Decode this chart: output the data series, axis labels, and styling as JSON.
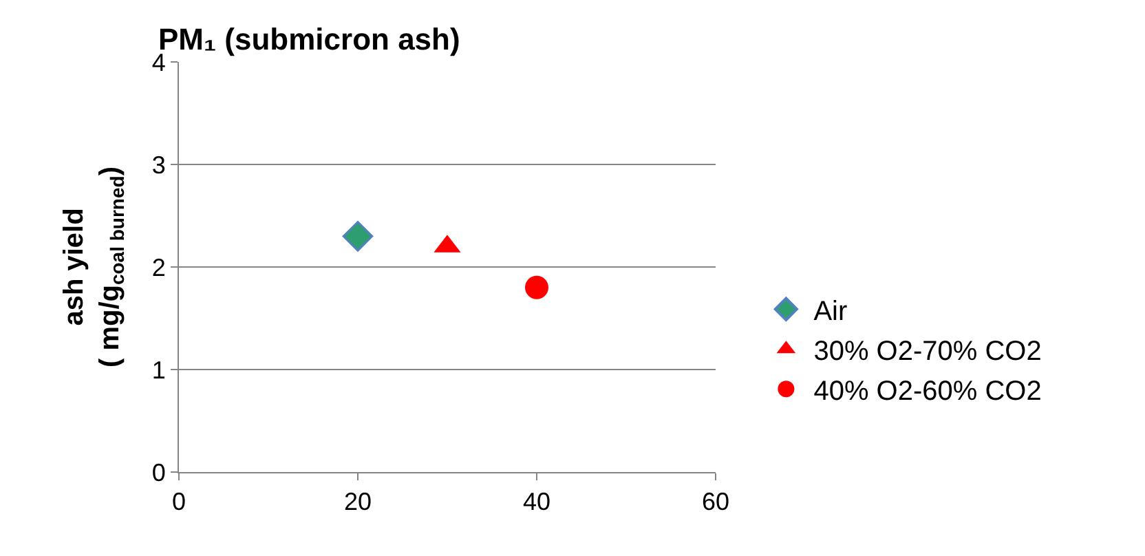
{
  "chart_data": {
    "type": "scatter",
    "title": "PM₁ (submicron ash)",
    "ylabel": "ash yield\n( mg/g$_{coal burned}$)",
    "xlim": [
      0,
      60
    ],
    "xticks": [
      0,
      20,
      40,
      60
    ],
    "ylim": [
      0,
      4
    ],
    "yticks": [
      0,
      1,
      2,
      3,
      4
    ],
    "grid": "y",
    "legend": "right",
    "series": [
      {
        "name": "Air",
        "color": "#2e9e6e",
        "marker": "diamond",
        "x": [
          20
        ],
        "values": [
          2.3
        ]
      },
      {
        "name": "30% O2-70% CO2",
        "color": "#ff0000",
        "marker": "triangle",
        "x": [
          30
        ],
        "values": [
          2.2
        ]
      },
      {
        "name": "40% O2-60% CO2",
        "color": "#ff0000",
        "marker": "circle",
        "x": [
          40
        ],
        "values": [
          1.8
        ]
      }
    ]
  }
}
